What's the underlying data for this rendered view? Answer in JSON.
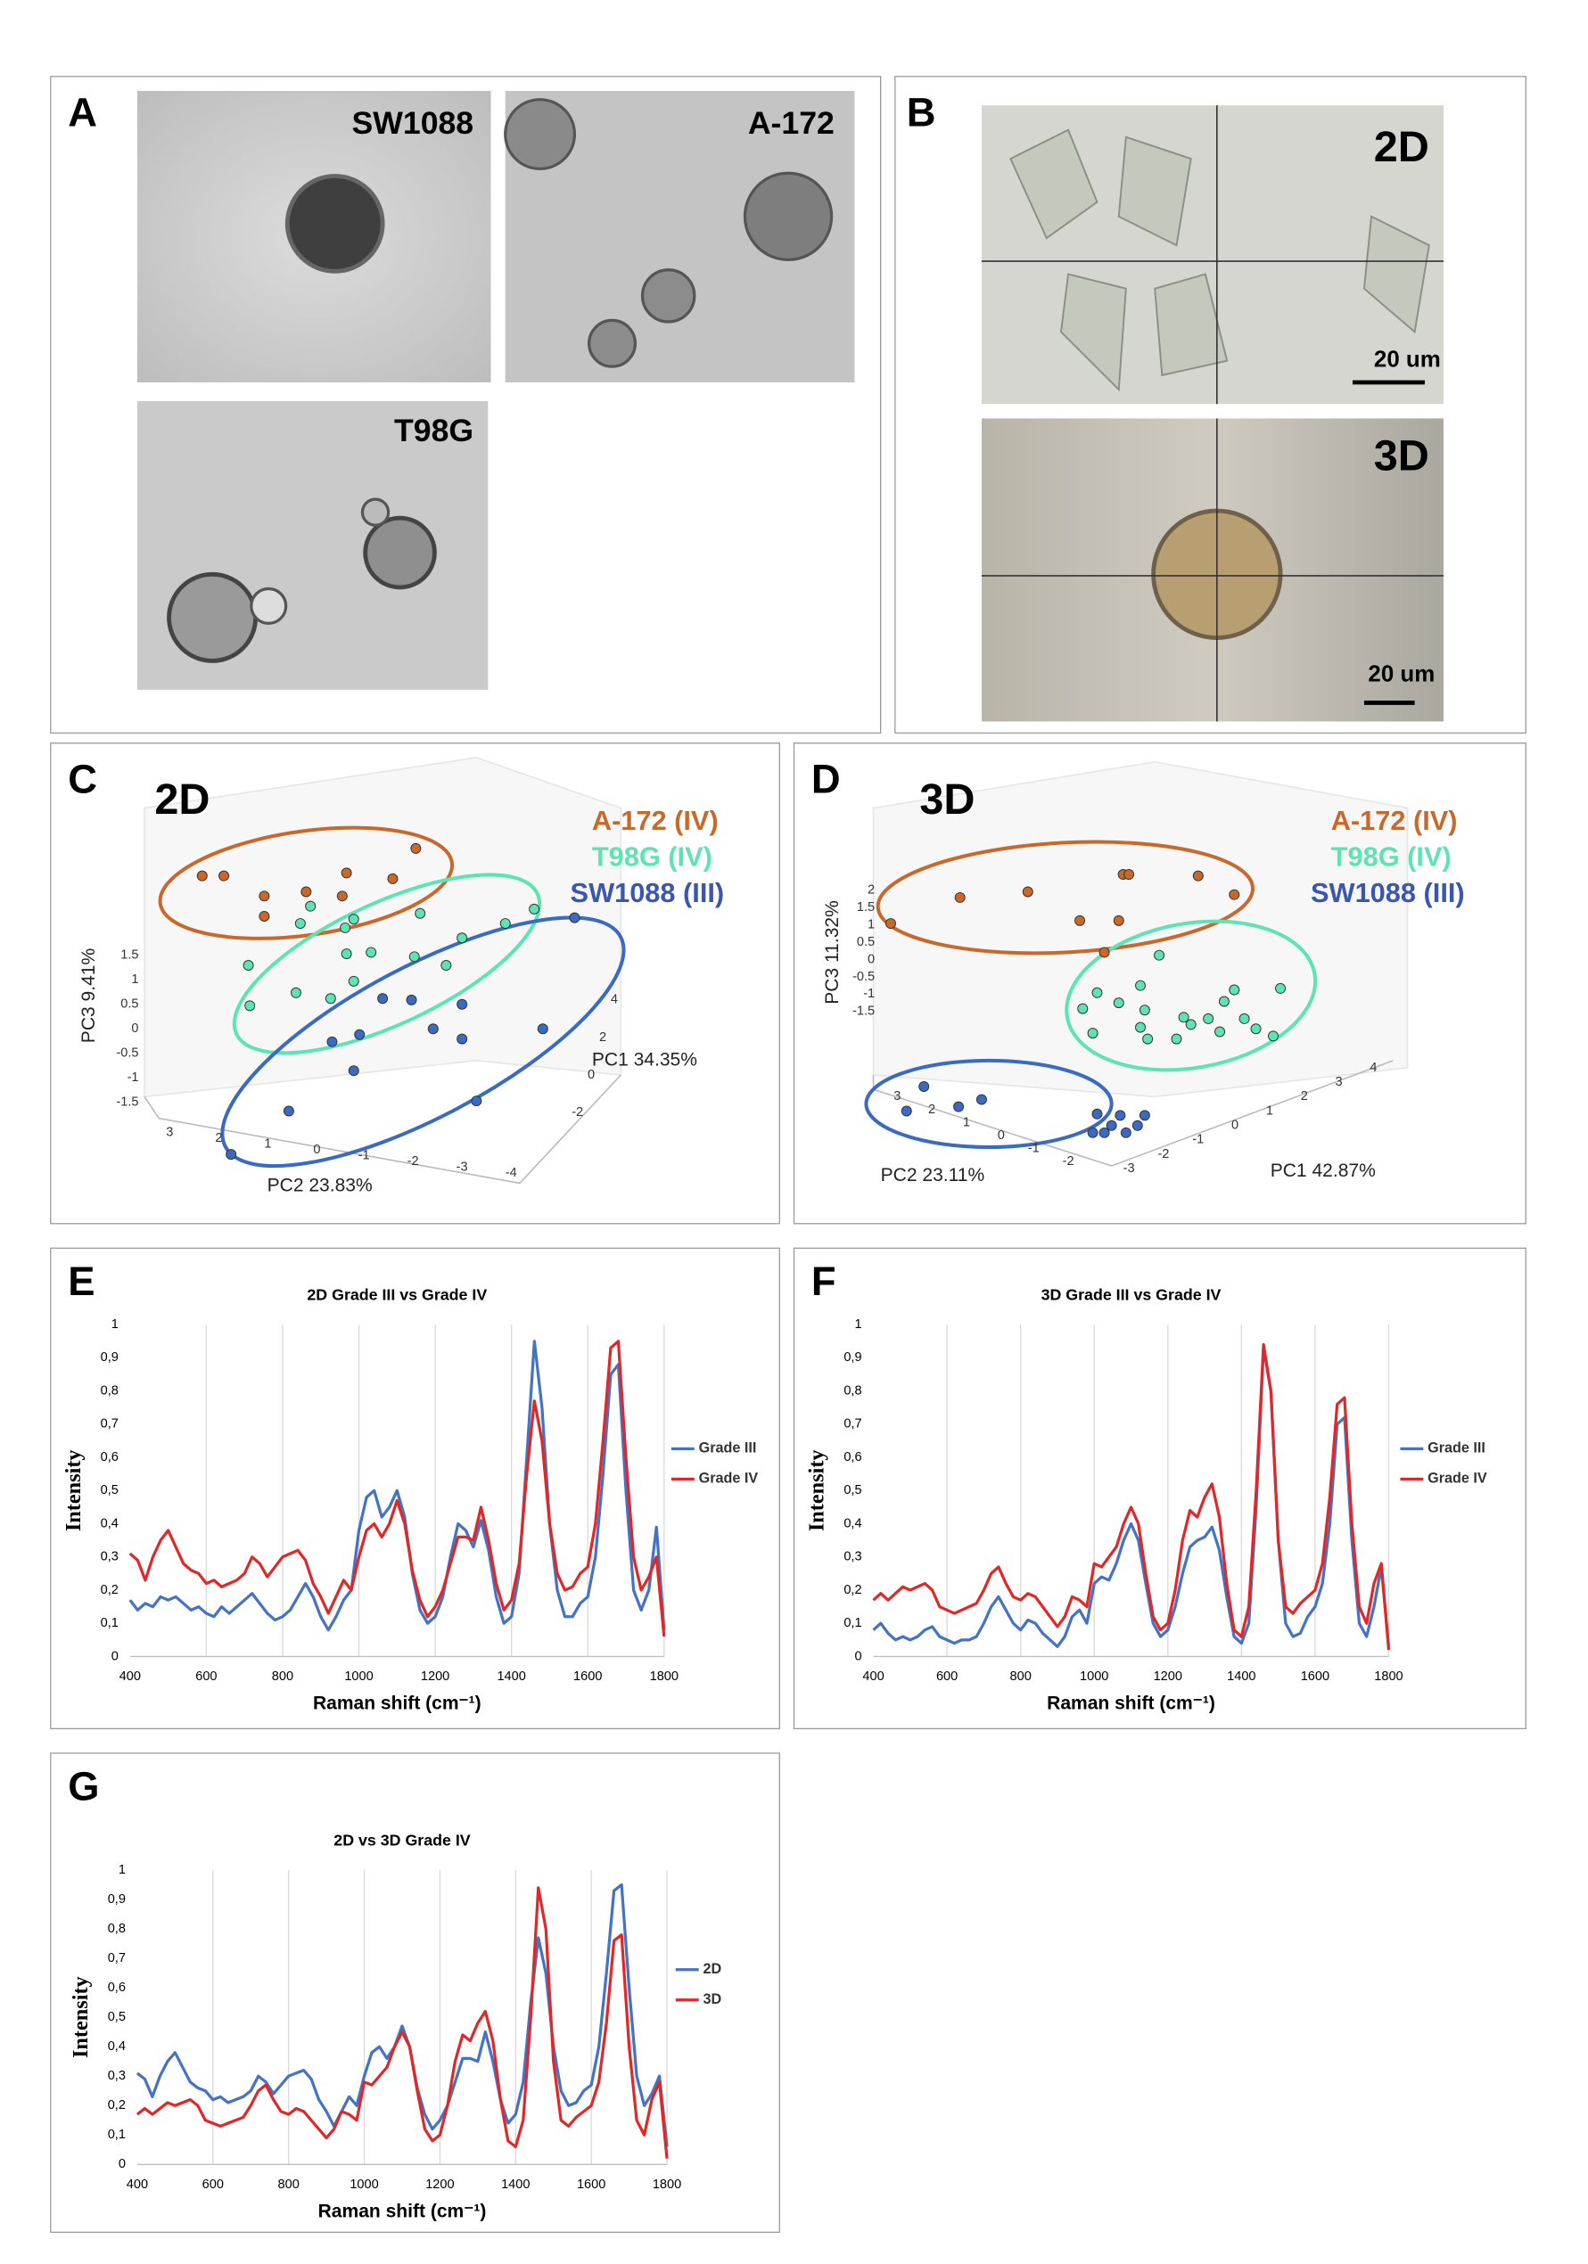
{
  "figure": {
    "A": {
      "letter": "A",
      "labels": [
        "SW1088",
        "A-172",
        "T98G"
      ]
    },
    "B": {
      "letter": "B",
      "labels": [
        "2D",
        "3D"
      ],
      "scale": [
        "20 um",
        "20 um"
      ]
    },
    "C": {
      "letter": "C",
      "title": "2D",
      "legend": [
        "A-172 (IV)",
        "T98G (IV)",
        "SW1088 (III)"
      ],
      "pc3_label": "PC3 9.41%",
      "pc1_label": "PC1 34.35%",
      "pc2_label": "PC2 23.83%",
      "pc3_ticks": [
        1.5,
        1,
        0.5,
        0,
        -0.5,
        -1,
        -1.5
      ],
      "pc2_ticks": [
        3,
        2,
        1,
        0,
        -1,
        -2,
        -3,
        -4
      ],
      "pc1_ticks": [
        4,
        2,
        0,
        -2
      ]
    },
    "D": {
      "letter": "D",
      "title": "3D",
      "legend": [
        "A-172 (IV)",
        "T98G (IV)",
        "SW1088 (III)"
      ],
      "pc3_label": "PC3 11.32%",
      "pc1_label": "PC1 42.87%",
      "pc2_label": "PC2 23.11%",
      "pc3_ticks": [
        2,
        1.5,
        1,
        0.5,
        0,
        -0.5,
        -1,
        -1.5
      ],
      "pc2_ticks": [
        3,
        2,
        1,
        0,
        -1,
        -2
      ],
      "pc1_ticks": [
        -3,
        -2,
        -1,
        0,
        1,
        2,
        3,
        4
      ]
    },
    "E": {
      "letter": "E"
    },
    "F": {
      "letter": "F"
    },
    "G": {
      "letter": "G"
    }
  },
  "chart_data": [
    {
      "type": "line",
      "title": "2D Grade III vs Grade IV",
      "xlabel": "Raman shift (cm⁻¹)",
      "ylabel": "Intensity",
      "grid": "x",
      "xlim": [
        400,
        1800
      ],
      "ylim": [
        0,
        1
      ],
      "xticks": [
        400,
        600,
        800,
        1000,
        1200,
        1400,
        1600,
        1800
      ],
      "yticks": [
        0,
        {
          "value": 0.1,
          "label": "0,1"
        },
        {
          "value": 0.2,
          "label": "0,2"
        },
        {
          "value": 0.3,
          "label": "0,3"
        },
        {
          "value": 0.4,
          "label": "0,4"
        },
        {
          "value": 0.5,
          "label": "0,5"
        },
        {
          "value": 0.6,
          "label": "0,6"
        },
        {
          "value": 0.7,
          "label": "0,7"
        },
        {
          "value": 0.8,
          "label": "0,8"
        },
        {
          "value": 0.9,
          "label": "0,9"
        },
        1
      ],
      "x": [
        400,
        420,
        440,
        460,
        480,
        500,
        520,
        540,
        560,
        580,
        600,
        620,
        640,
        660,
        680,
        700,
        720,
        740,
        760,
        780,
        800,
        820,
        840,
        860,
        880,
        900,
        920,
        940,
        960,
        980,
        1000,
        1020,
        1040,
        1060,
        1080,
        1100,
        1120,
        1140,
        1160,
        1180,
        1200,
        1220,
        1240,
        1260,
        1280,
        1300,
        1320,
        1340,
        1360,
        1380,
        1400,
        1420,
        1440,
        1460,
        1480,
        1500,
        1520,
        1540,
        1560,
        1580,
        1600,
        1620,
        1640,
        1660,
        1680,
        1700,
        1720,
        1740,
        1760,
        1780,
        1800
      ],
      "series": [
        {
          "name": "Grade III",
          "color": "#4472c4",
          "values": [
            0.17,
            0.14,
            0.16,
            0.15,
            0.18,
            0.17,
            0.18,
            0.16,
            0.14,
            0.15,
            0.13,
            0.12,
            0.15,
            0.13,
            0.15,
            0.17,
            0.19,
            0.16,
            0.13,
            0.11,
            0.12,
            0.14,
            0.18,
            0.22,
            0.18,
            0.12,
            0.08,
            0.12,
            0.17,
            0.2,
            0.38,
            0.48,
            0.5,
            0.42,
            0.45,
            0.5,
            0.42,
            0.25,
            0.14,
            0.1,
            0.12,
            0.18,
            0.3,
            0.4,
            0.38,
            0.33,
            0.41,
            0.32,
            0.18,
            0.1,
            0.12,
            0.25,
            0.6,
            0.95,
            0.75,
            0.4,
            0.2,
            0.12,
            0.12,
            0.16,
            0.18,
            0.3,
            0.55,
            0.85,
            0.88,
            0.5,
            0.2,
            0.14,
            0.2,
            0.39,
            0.08
          ]
        },
        {
          "name": "Grade IV",
          "color": "#e02828",
          "values": [
            0.31,
            0.29,
            0.23,
            0.3,
            0.35,
            0.38,
            0.33,
            0.28,
            0.26,
            0.25,
            0.22,
            0.23,
            0.21,
            0.22,
            0.23,
            0.25,
            0.3,
            0.28,
            0.24,
            0.27,
            0.3,
            0.31,
            0.32,
            0.29,
            0.22,
            0.18,
            0.13,
            0.18,
            0.23,
            0.2,
            0.3,
            0.38,
            0.4,
            0.36,
            0.4,
            0.47,
            0.4,
            0.26,
            0.17,
            0.12,
            0.15,
            0.2,
            0.28,
            0.36,
            0.36,
            0.35,
            0.45,
            0.35,
            0.22,
            0.14,
            0.17,
            0.28,
            0.55,
            0.77,
            0.65,
            0.4,
            0.25,
            0.2,
            0.21,
            0.25,
            0.27,
            0.4,
            0.65,
            0.93,
            0.95,
            0.6,
            0.3,
            0.2,
            0.24,
            0.3,
            0.06
          ]
        }
      ]
    },
    {
      "type": "line",
      "title": "3D Grade III vs Grade IV",
      "xlabel": "Raman shift (cm⁻¹)",
      "ylabel": "Intensity",
      "grid": "x",
      "xlim": [
        400,
        1800
      ],
      "ylim": [
        0,
        1
      ],
      "xticks": [
        400,
        600,
        800,
        1000,
        1200,
        1400,
        1600,
        1800
      ],
      "yticks": [
        0,
        {
          "value": 0.1,
          "label": "0,1"
        },
        {
          "value": 0.2,
          "label": "0,2"
        },
        {
          "value": 0.3,
          "label": "0,3"
        },
        {
          "value": 0.4,
          "label": "0,4"
        },
        {
          "value": 0.5,
          "label": "0,5"
        },
        {
          "value": 0.6,
          "label": "0,6"
        },
        {
          "value": 0.7,
          "label": "0,7"
        },
        {
          "value": 0.8,
          "label": "0,8"
        },
        {
          "value": 0.9,
          "label": "0,9"
        },
        1
      ],
      "x": [
        400,
        420,
        440,
        460,
        480,
        500,
        520,
        540,
        560,
        580,
        600,
        620,
        640,
        660,
        680,
        700,
        720,
        740,
        760,
        780,
        800,
        820,
        840,
        860,
        880,
        900,
        920,
        940,
        960,
        980,
        1000,
        1020,
        1040,
        1060,
        1080,
        1100,
        1120,
        1140,
        1160,
        1180,
        1200,
        1220,
        1240,
        1260,
        1280,
        1300,
        1320,
        1340,
        1360,
        1380,
        1400,
        1420,
        1440,
        1460,
        1480,
        1500,
        1520,
        1540,
        1560,
        1580,
        1600,
        1620,
        1640,
        1660,
        1680,
        1700,
        1720,
        1740,
        1760,
        1780,
        1800
      ],
      "series": [
        {
          "name": "Grade III",
          "color": "#4472c4",
          "values": [
            0.08,
            0.1,
            0.07,
            0.05,
            0.06,
            0.05,
            0.06,
            0.08,
            0.09,
            0.06,
            0.05,
            0.04,
            0.05,
            0.05,
            0.06,
            0.1,
            0.15,
            0.18,
            0.14,
            0.1,
            0.08,
            0.11,
            0.1,
            0.07,
            0.05,
            0.03,
            0.06,
            0.12,
            0.14,
            0.1,
            0.22,
            0.24,
            0.23,
            0.28,
            0.35,
            0.4,
            0.35,
            0.22,
            0.1,
            0.06,
            0.08,
            0.15,
            0.25,
            0.33,
            0.35,
            0.36,
            0.39,
            0.32,
            0.18,
            0.06,
            0.04,
            0.1,
            0.45,
            0.93,
            0.8,
            0.35,
            0.1,
            0.06,
            0.07,
            0.12,
            0.15,
            0.22,
            0.4,
            0.7,
            0.72,
            0.35,
            0.1,
            0.06,
            0.15,
            0.27,
            0.03
          ]
        },
        {
          "name": "Grade IV",
          "color": "#e02828",
          "values": [
            0.17,
            0.19,
            0.17,
            0.19,
            0.21,
            0.2,
            0.21,
            0.22,
            0.2,
            0.15,
            0.14,
            0.13,
            0.14,
            0.15,
            0.16,
            0.2,
            0.25,
            0.27,
            0.22,
            0.18,
            0.17,
            0.19,
            0.18,
            0.15,
            0.12,
            0.09,
            0.12,
            0.18,
            0.17,
            0.15,
            0.28,
            0.27,
            0.3,
            0.33,
            0.4,
            0.45,
            0.4,
            0.25,
            0.12,
            0.08,
            0.1,
            0.2,
            0.35,
            0.44,
            0.42,
            0.48,
            0.52,
            0.42,
            0.22,
            0.08,
            0.06,
            0.15,
            0.5,
            0.94,
            0.8,
            0.35,
            0.15,
            0.13,
            0.16,
            0.18,
            0.2,
            0.28,
            0.48,
            0.76,
            0.78,
            0.4,
            0.15,
            0.1,
            0.22,
            0.28,
            0.02
          ]
        }
      ]
    },
    {
      "type": "line",
      "title": "2D vs 3D Grade IV",
      "xlabel": "Raman shift (cm⁻¹)",
      "ylabel": "Intensity",
      "grid": "x",
      "xlim": [
        400,
        1800
      ],
      "ylim": [
        0,
        1
      ],
      "xticks": [
        400,
        600,
        800,
        1000,
        1200,
        1400,
        1600,
        1800
      ],
      "yticks": [
        0,
        {
          "value": 0.1,
          "label": "0,1"
        },
        {
          "value": 0.2,
          "label": "0,2"
        },
        {
          "value": 0.3,
          "label": "0,3"
        },
        {
          "value": 0.4,
          "label": "0,4"
        },
        {
          "value": 0.5,
          "label": "0,5"
        },
        {
          "value": 0.6,
          "label": "0,6"
        },
        {
          "value": 0.7,
          "label": "0,7"
        },
        {
          "value": 0.8,
          "label": "0,8"
        },
        {
          "value": 0.9,
          "label": "0,9"
        },
        1
      ],
      "x": [
        400,
        420,
        440,
        460,
        480,
        500,
        520,
        540,
        560,
        580,
        600,
        620,
        640,
        660,
        680,
        700,
        720,
        740,
        760,
        780,
        800,
        820,
        840,
        860,
        880,
        900,
        920,
        940,
        960,
        980,
        1000,
        1020,
        1040,
        1060,
        1080,
        1100,
        1120,
        1140,
        1160,
        1180,
        1200,
        1220,
        1240,
        1260,
        1280,
        1300,
        1320,
        1340,
        1360,
        1380,
        1400,
        1420,
        1440,
        1460,
        1480,
        1500,
        1520,
        1540,
        1560,
        1580,
        1600,
        1620,
        1640,
        1660,
        1680,
        1700,
        1720,
        1740,
        1760,
        1780,
        1800
      ],
      "series": [
        {
          "name": "2D",
          "color": "#4472c4",
          "values": [
            0.31,
            0.29,
            0.23,
            0.3,
            0.35,
            0.38,
            0.33,
            0.28,
            0.26,
            0.25,
            0.22,
            0.23,
            0.21,
            0.22,
            0.23,
            0.25,
            0.3,
            0.28,
            0.24,
            0.27,
            0.3,
            0.31,
            0.32,
            0.29,
            0.22,
            0.18,
            0.13,
            0.18,
            0.23,
            0.2,
            0.3,
            0.38,
            0.4,
            0.36,
            0.4,
            0.47,
            0.4,
            0.26,
            0.17,
            0.12,
            0.15,
            0.2,
            0.28,
            0.36,
            0.36,
            0.35,
            0.45,
            0.35,
            0.22,
            0.14,
            0.17,
            0.28,
            0.55,
            0.77,
            0.65,
            0.4,
            0.25,
            0.2,
            0.21,
            0.25,
            0.27,
            0.4,
            0.65,
            0.93,
            0.95,
            0.6,
            0.3,
            0.2,
            0.24,
            0.3,
            0.06
          ]
        },
        {
          "name": "3D",
          "color": "#e02828",
          "values": [
            0.17,
            0.19,
            0.17,
            0.19,
            0.21,
            0.2,
            0.21,
            0.22,
            0.2,
            0.15,
            0.14,
            0.13,
            0.14,
            0.15,
            0.16,
            0.2,
            0.25,
            0.27,
            0.22,
            0.18,
            0.17,
            0.19,
            0.18,
            0.15,
            0.12,
            0.09,
            0.12,
            0.18,
            0.17,
            0.15,
            0.28,
            0.27,
            0.3,
            0.33,
            0.4,
            0.45,
            0.4,
            0.25,
            0.12,
            0.08,
            0.1,
            0.2,
            0.35,
            0.44,
            0.42,
            0.48,
            0.52,
            0.42,
            0.22,
            0.08,
            0.06,
            0.15,
            0.5,
            0.94,
            0.8,
            0.35,
            0.15,
            0.13,
            0.16,
            0.18,
            0.2,
            0.28,
            0.48,
            0.76,
            0.78,
            0.4,
            0.15,
            0.1,
            0.22,
            0.28,
            0.02
          ]
        }
      ]
    }
  ]
}
